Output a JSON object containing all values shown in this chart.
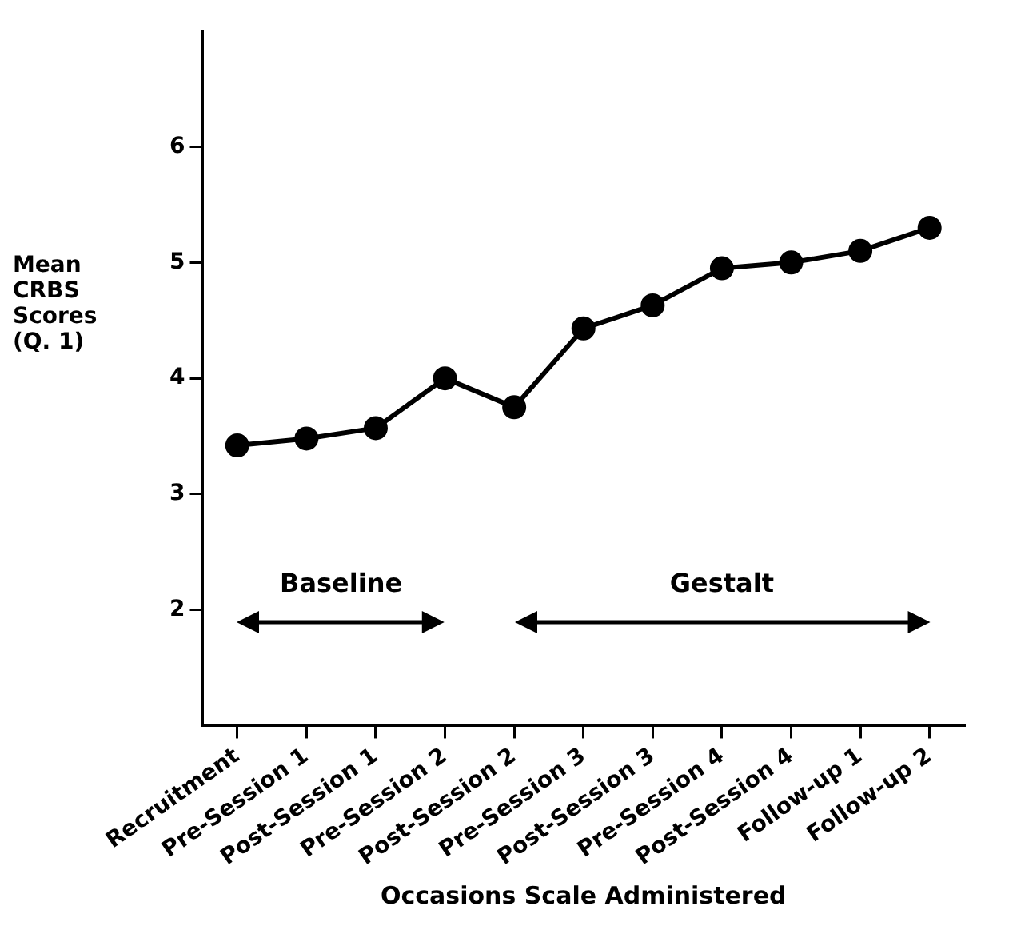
{
  "chart_data": {
    "type": "line",
    "xlabel": "Occasions Scale Administered",
    "ylabel": "Mean CRBS Scores (Q. 1)",
    "categories": [
      "Recruitment",
      "Pre-Session 1",
      "Post-Session 1",
      "Pre-Session 2",
      "Post-Session 2",
      "Pre-Session 3",
      "Post-Session 3",
      "Pre-Session 4",
      "Post-Session 4",
      "Follow-up 1",
      "Follow-up 2"
    ],
    "series": [
      {
        "color": "#000000",
        "values": [
          3.42,
          3.48,
          3.57,
          4.0,
          3.75,
          4.43,
          4.63,
          4.95,
          5.0,
          5.1,
          5.3
        ]
      }
    ],
    "ylim": [
      1,
      7
    ],
    "yticks": [
      2,
      3,
      4,
      5,
      6
    ],
    "grid": false,
    "legend": false,
    "marker": "circle",
    "line_style": "solid",
    "annotations": [
      "Baseline",
      "Gestalt"
    ]
  }
}
